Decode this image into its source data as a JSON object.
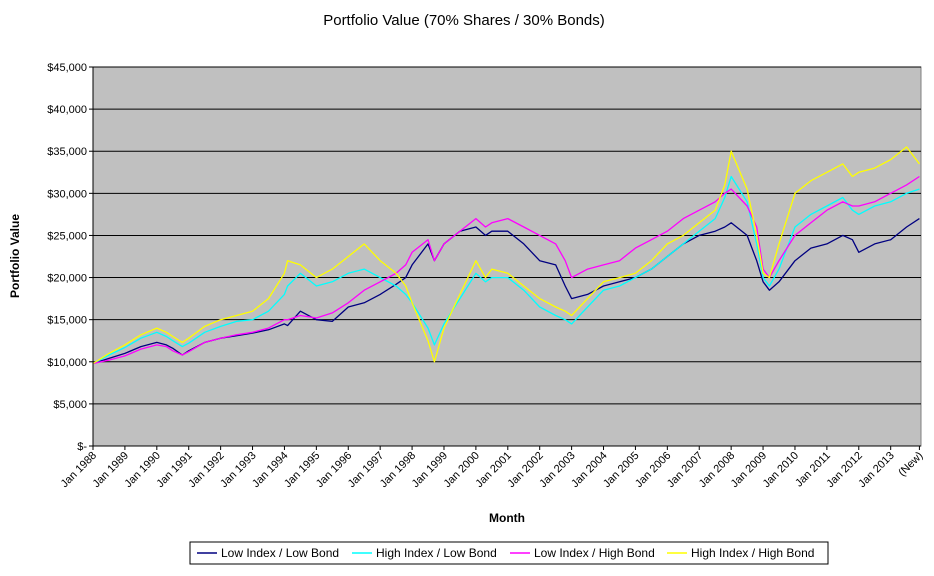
{
  "chart_data": {
    "type": "line",
    "title": "Portfolio Value (70% Shares / 30% Bonds)",
    "xlabel": "Month",
    "ylabel": "Portfolio Value",
    "ylim": [
      0,
      45000
    ],
    "y_ticks": [
      0,
      5000,
      10000,
      15000,
      20000,
      25000,
      30000,
      35000,
      40000,
      45000
    ],
    "y_tick_labels": [
      "$-",
      "$5,000",
      "$10,000",
      "$15,000",
      "$20,000",
      "$25,000",
      "$30,000",
      "$35,000",
      "$40,000",
      "$45,000"
    ],
    "x_tick_labels": [
      "Jan 1988",
      "Jan 1989",
      "Jan 1990",
      "Jan 1991",
      "Jan 1992",
      "Jan 1993",
      "Jan 1994",
      "Jan 1995",
      "Jan 1996",
      "Jan 1997",
      "Jan 1998",
      "Jan 1999",
      "Jan 2000",
      "Jan 2001",
      "Jan 2002",
      "Jan 2003",
      "Jan 2004",
      "Jan 2005",
      "Jan 2006",
      "Jan 2007",
      "Jan 2008",
      "Jan 2009",
      "Jan 2010",
      "Jan 2011",
      "Jan 2012",
      "Jan 2013",
      "(New)"
    ],
    "x_tick_values": [
      1988,
      1989,
      1990,
      1991,
      1992,
      1993,
      1994,
      1995,
      1996,
      1997,
      1998,
      1999,
      2000,
      2001,
      2002,
      2003,
      2004,
      2005,
      2006,
      2007,
      2008,
      2009,
      2010,
      2011,
      2012,
      2013,
      2013.9
    ],
    "xlim": [
      1988,
      2013.95
    ],
    "plot_background": "#c0c0c0",
    "grid": true,
    "legend_position": "bottom",
    "series": [
      {
        "name": "Low Index / Low Bond",
        "color": "#000080",
        "x": [
          1988.0,
          1988.5,
          1989.0,
          1989.5,
          1990.0,
          1990.3,
          1990.5,
          1990.8,
          1991.0,
          1991.5,
          1992.0,
          1992.5,
          1993.0,
          1993.5,
          1994.0,
          1994.1,
          1994.5,
          1995.0,
          1995.5,
          1996.0,
          1996.5,
          1997.0,
          1997.5,
          1997.8,
          1998.0,
          1998.5,
          1998.7,
          1999.0,
          1999.5,
          2000.0,
          2000.3,
          2000.5,
          2001.0,
          2001.5,
          2002.0,
          2002.5,
          2002.8,
          2003.0,
          2003.5,
          2004.0,
          2004.5,
          2005.0,
          2005.5,
          2006.0,
          2006.5,
          2007.0,
          2007.5,
          2007.8,
          2008.0,
          2008.5,
          2008.8,
          2009.0,
          2009.2,
          2009.5,
          2010.0,
          2010.5,
          2011.0,
          2011.5,
          2011.8,
          2012.0,
          2012.5,
          2013.0,
          2013.5,
          2013.9
        ],
        "y": [
          9800,
          10400,
          11000,
          11800,
          12300,
          12000,
          11600,
          10800,
          11300,
          12300,
          12800,
          13100,
          13400,
          13800,
          14500,
          14300,
          16000,
          15000,
          14800,
          16500,
          17000,
          18000,
          19200,
          20000,
          21500,
          24000,
          22000,
          24000,
          25500,
          26000,
          25000,
          25500,
          25500,
          24000,
          22000,
          21500,
          19000,
          17500,
          18000,
          19000,
          19500,
          20000,
          21000,
          22500,
          24000,
          25000,
          25500,
          26000,
          26500,
          25000,
          22000,
          19500,
          18500,
          19500,
          22000,
          23500,
          24000,
          25000,
          24500,
          23000,
          24000,
          24500,
          26000,
          27000
        ]
      },
      {
        "name": "High Index / Low Bond",
        "color": "#00ffff",
        "x": [
          1988.0,
          1988.5,
          1989.0,
          1989.5,
          1990.0,
          1990.3,
          1990.5,
          1990.8,
          1991.0,
          1991.5,
          1992.0,
          1992.5,
          1993.0,
          1993.5,
          1994.0,
          1994.1,
          1994.5,
          1995.0,
          1995.5,
          1996.0,
          1996.5,
          1997.0,
          1997.5,
          1997.8,
          1998.0,
          1998.5,
          1998.7,
          1999.0,
          1999.5,
          2000.0,
          2000.3,
          2000.5,
          2001.0,
          2001.5,
          2002.0,
          2002.5,
          2002.8,
          2003.0,
          2003.5,
          2004.0,
          2004.5,
          2005.0,
          2005.5,
          2006.0,
          2006.5,
          2007.0,
          2007.5,
          2007.8,
          2008.0,
          2008.5,
          2008.8,
          2009.0,
          2009.2,
          2009.5,
          2010.0,
          2010.5,
          2011.0,
          2011.5,
          2011.8,
          2012.0,
          2012.5,
          2013.0,
          2013.5,
          2013.9
        ],
        "y": [
          9800,
          10800,
          11700,
          12800,
          13500,
          13000,
          12500,
          11800,
          12200,
          13500,
          14200,
          14800,
          15000,
          16000,
          18000,
          19000,
          20500,
          19000,
          19500,
          20500,
          21000,
          20000,
          19000,
          18000,
          17000,
          14000,
          12000,
          14500,
          17500,
          20500,
          19500,
          20000,
          20000,
          18500,
          16500,
          15500,
          15000,
          14500,
          16500,
          18500,
          19000,
          20000,
          21000,
          22500,
          24000,
          25500,
          27000,
          29500,
          32000,
          29000,
          24000,
          20000,
          19000,
          21000,
          26000,
          27500,
          28500,
          29500,
          28000,
          27500,
          28500,
          29000,
          30000,
          30500
        ]
      },
      {
        "name": "Low Index / High Bond",
        "color": "#ff00ff",
        "x": [
          1988.0,
          1988.5,
          1989.0,
          1989.5,
          1990.0,
          1990.3,
          1990.5,
          1990.8,
          1991.0,
          1991.5,
          1992.0,
          1992.5,
          1993.0,
          1993.5,
          1994.0,
          1994.1,
          1994.5,
          1995.0,
          1995.5,
          1996.0,
          1996.5,
          1997.0,
          1997.5,
          1997.8,
          1998.0,
          1998.5,
          1998.7,
          1999.0,
          1999.5,
          2000.0,
          2000.3,
          2000.5,
          2001.0,
          2001.5,
          2002.0,
          2002.5,
          2002.8,
          2003.0,
          2003.5,
          2004.0,
          2004.5,
          2005.0,
          2005.5,
          2006.0,
          2006.5,
          2007.0,
          2007.5,
          2007.8,
          2008.0,
          2008.5,
          2008.8,
          2009.0,
          2009.2,
          2009.5,
          2010.0,
          2010.5,
          2011.0,
          2011.5,
          2011.8,
          2012.0,
          2012.5,
          2013.0,
          2013.5,
          2013.9
        ],
        "y": [
          9800,
          10200,
          10700,
          11500,
          12000,
          11800,
          11300,
          10800,
          11200,
          12300,
          12800,
          13200,
          13500,
          14000,
          15000,
          15000,
          15500,
          15200,
          15800,
          17000,
          18500,
          19500,
          20500,
          21500,
          23000,
          24500,
          22000,
          24000,
          25500,
          27000,
          26000,
          26500,
          27000,
          26000,
          25000,
          24000,
          22000,
          20000,
          21000,
          21500,
          22000,
          23500,
          24500,
          25500,
          27000,
          28000,
          29000,
          30000,
          30500,
          28500,
          26000,
          21000,
          20000,
          22000,
          25000,
          26500,
          28000,
          29000,
          28500,
          28500,
          29000,
          30000,
          31000,
          32000
        ]
      },
      {
        "name": "High Index / High Bond",
        "color": "#ffff00",
        "x": [
          1988.0,
          1988.5,
          1989.0,
          1989.5,
          1990.0,
          1990.3,
          1990.5,
          1990.8,
          1991.0,
          1991.5,
          1992.0,
          1992.5,
          1993.0,
          1993.5,
          1994.0,
          1994.1,
          1994.5,
          1995.0,
          1995.5,
          1996.0,
          1996.5,
          1997.0,
          1997.5,
          1997.8,
          1998.0,
          1998.5,
          1998.7,
          1999.0,
          1999.5,
          2000.0,
          2000.3,
          2000.5,
          2001.0,
          2001.5,
          2002.0,
          2002.5,
          2002.8,
          2003.0,
          2003.5,
          2004.0,
          2004.5,
          2005.0,
          2005.5,
          2006.0,
          2006.5,
          2007.0,
          2007.5,
          2007.8,
          2008.0,
          2008.5,
          2008.8,
          2009.0,
          2009.2,
          2009.5,
          2010.0,
          2010.5,
          2011.0,
          2011.5,
          2011.8,
          2012.0,
          2012.5,
          2013.0,
          2013.5,
          2013.9
        ],
        "y": [
          9800,
          11000,
          12000,
          13200,
          14000,
          13500,
          13000,
          12300,
          12800,
          14200,
          15000,
          15500,
          16000,
          17500,
          20500,
          22000,
          21500,
          20000,
          21000,
          22500,
          24000,
          22000,
          20500,
          19000,
          17000,
          12500,
          10000,
          14000,
          18000,
          22000,
          20000,
          21000,
          20500,
          19000,
          17500,
          16500,
          16000,
          15500,
          17500,
          19500,
          20000,
          20500,
          22000,
          24000,
          25000,
          26500,
          28000,
          31000,
          35000,
          30500,
          25000,
          20500,
          20000,
          24000,
          30000,
          31500,
          32500,
          33500,
          32000,
          32500,
          33000,
          34000,
          35500,
          33500
        ]
      }
    ]
  }
}
